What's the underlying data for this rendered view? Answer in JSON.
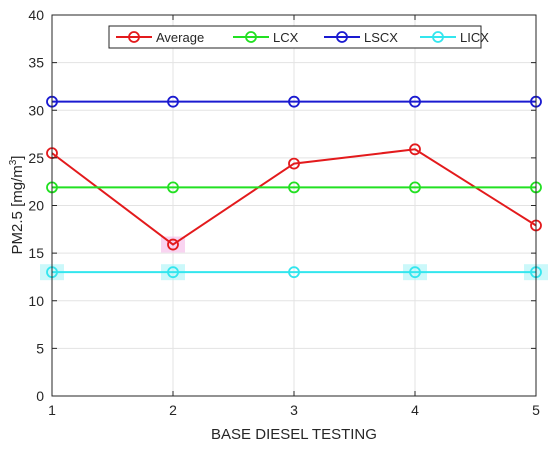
{
  "chart_data": {
    "type": "line",
    "title": "",
    "xlabel": "BASE DIESEL TESTING",
    "ylabel": "PM2.5 [mg/m",
    "ylabel_superscript": "3",
    "ylabel_suffix": "]",
    "x": [
      1,
      2,
      3,
      4,
      5
    ],
    "xlim": [
      1,
      5
    ],
    "ylim": [
      0,
      40
    ],
    "xticks": [
      1,
      2,
      3,
      4,
      5
    ],
    "yticks": [
      0,
      5,
      10,
      15,
      20,
      25,
      30,
      35,
      40
    ],
    "grid": true,
    "legend_position": "top",
    "series": [
      {
        "name": "Average",
        "color": "#e31a1c",
        "marker": "circle",
        "values": [
          25.5,
          15.9,
          24.4,
          25.9,
          17.9
        ]
      },
      {
        "name": "LCX",
        "color": "#22e022",
        "marker": "circle",
        "values": [
          21.9,
          21.9,
          21.9,
          21.9,
          21.9
        ]
      },
      {
        "name": "LSCX",
        "color": "#1a1ad0",
        "marker": "circle",
        "values": [
          30.9,
          30.9,
          30.9,
          30.9,
          30.9
        ]
      },
      {
        "name": "LICX",
        "color": "#33e6ee",
        "marker": "circle",
        "values": [
          13.0,
          13.0,
          13.0,
          13.0,
          13.0
        ]
      }
    ]
  }
}
